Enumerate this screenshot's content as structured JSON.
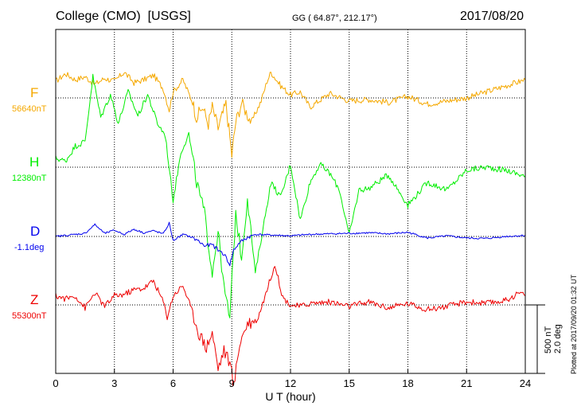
{
  "header": {
    "station": "College (CMO)  [USGS]",
    "coords": "GG ( 64.87°, 212.17°)",
    "date": "2017/08/20"
  },
  "footer": {
    "plotted": "Plotted at 2017/09/20 01:32 UT"
  },
  "scale": {
    "nt": "500 nT",
    "deg": "2.0 deg"
  },
  "chart_data": {
    "type": "line",
    "xlabel": "U T (hour)",
    "xlim": [
      0,
      24
    ],
    "xticks": [
      "0",
      "3",
      "6",
      "9",
      "12",
      "15",
      "18",
      "21",
      "24"
    ],
    "grid": true,
    "series": [
      {
        "name": "F",
        "baseline_label": "56640nT",
        "color": "#f5a800",
        "x": [
          0,
          0.5,
          1,
          1.5,
          2,
          2.5,
          3,
          3.5,
          4,
          4.5,
          5,
          5.5,
          5.8,
          6,
          6.5,
          7,
          7.2,
          7.5,
          7.8,
          8,
          8.3,
          8.5,
          8.7,
          8.9,
          9,
          9.2,
          9.5,
          9.8,
          10,
          10.5,
          10.8,
          11,
          11.5,
          12,
          12.5,
          13,
          14,
          15,
          16,
          17,
          18,
          19,
          20,
          21,
          22,
          23,
          24
        ],
        "y": [
          110,
          160,
          120,
          140,
          90,
          130,
          110,
          170,
          100,
          120,
          150,
          60,
          -80,
          40,
          120,
          -30,
          -130,
          -60,
          -170,
          -60,
          -200,
          -120,
          -40,
          -260,
          -380,
          -160,
          -30,
          -110,
          -160,
          -20,
          110,
          170,
          80,
          20,
          40,
          -60,
          30,
          -20,
          -10,
          -30,
          10,
          -40,
          -20,
          0,
          40,
          80,
          120
        ]
      },
      {
        "name": "H",
        "baseline_label": "12380nT",
        "color": "#00ee00",
        "x": [
          0,
          0.5,
          1,
          1.5,
          1.9,
          2.3,
          2.8,
          3.2,
          3.7,
          4.2,
          4.7,
          5.2,
          5.6,
          6,
          6.4,
          6.8,
          7.2,
          7.6,
          8,
          8.3,
          8.6,
          8.9,
          9.2,
          9.5,
          9.8,
          10.2,
          10.6,
          11,
          11.5,
          12,
          12.5,
          13,
          13.5,
          14,
          14.5,
          15,
          15.5,
          16,
          17,
          18,
          19,
          20,
          21,
          22,
          23,
          24
        ],
        "y": [
          60,
          40,
          140,
          170,
          600,
          330,
          480,
          290,
          500,
          340,
          480,
          290,
          210,
          -220,
          100,
          220,
          -100,
          -300,
          -700,
          -420,
          -800,
          -1000,
          -300,
          -600,
          -200,
          -700,
          -400,
          -100,
          -200,
          20,
          -350,
          -100,
          20,
          -40,
          -150,
          -450,
          -150,
          -140,
          -50,
          -250,
          -100,
          -150,
          -20,
          0,
          -20,
          -60
        ]
      },
      {
        "name": "D",
        "baseline_label": "-1.1deg",
        "color": "#0000ee",
        "x": [
          0,
          0.5,
          1,
          1.5,
          2,
          2.5,
          3,
          3.5,
          4,
          4.5,
          5,
          5.5,
          5.8,
          6,
          6.5,
          7,
          7.3,
          7.6,
          8,
          8.3,
          8.6,
          8.9,
          9.1,
          9.4,
          9.8,
          10.2,
          10.8,
          11.5,
          12,
          13,
          14,
          15,
          16,
          17,
          18,
          19,
          20,
          21,
          22,
          23,
          24
        ],
        "y": [
          0,
          0.2,
          0.4,
          0.6,
          2.3,
          0.6,
          1.2,
          0.4,
          1.4,
          0.7,
          1.1,
          0.5,
          2.6,
          -0.8,
          0.4,
          -0.2,
          -0.9,
          -1.8,
          -1.6,
          -2.6,
          -3.4,
          -5.4,
          -2.6,
          -1.2,
          -0.2,
          0.4,
          0.3,
          0.2,
          0.1,
          0.4,
          0.5,
          0.6,
          0.7,
          0.5,
          0.8,
          -0.3,
          0.1,
          -0.3,
          -0.4,
          0.0,
          0.2
        ]
      },
      {
        "name": "Z",
        "baseline_label": "55300nT",
        "color": "#ee0000",
        "x": [
          0,
          0.5,
          1,
          1.5,
          2,
          2.5,
          3,
          3.5,
          4,
          4.5,
          5,
          5.5,
          5.7,
          6,
          6.5,
          7,
          7.3,
          7.7,
          8,
          8.3,
          8.6,
          8.9,
          9.1,
          9.4,
          9.8,
          10.3,
          10.8,
          11.2,
          11.6,
          12,
          12.5,
          13,
          14,
          15,
          16,
          17,
          18,
          19,
          20,
          21,
          22,
          23,
          23.7,
          24
        ],
        "y": [
          60,
          40,
          60,
          -20,
          80,
          -10,
          60,
          70,
          100,
          110,
          160,
          20,
          -80,
          60,
          130,
          -50,
          -180,
          -280,
          -180,
          -420,
          -300,
          -380,
          -540,
          -250,
          -120,
          -100,
          100,
          270,
          50,
          0,
          -10,
          10,
          20,
          -10,
          20,
          -20,
          10,
          -30,
          -10,
          20,
          10,
          30,
          80,
          60
        ]
      }
    ]
  }
}
